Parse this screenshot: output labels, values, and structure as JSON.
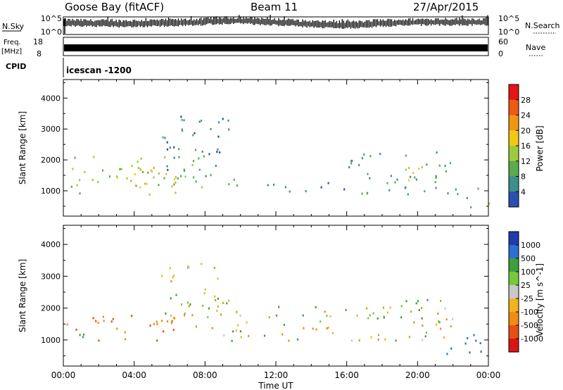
{
  "header": {
    "station": "Goose Bay (fitACF)",
    "beam": "Beam 11",
    "date": "27/Apr/2015"
  },
  "status_panels": {
    "nsky_label": "N.Sky",
    "nsky_ticks": [
      "10^5",
      "10^0"
    ],
    "nsearch_label": "N.Search",
    "nsearch_ticks": [
      "10^5",
      "10^0"
    ],
    "freq_label": "Freq.",
    "freq_unit": "[MHz]",
    "freq_ticks": [
      "18",
      "8"
    ],
    "nave_label": "Nave",
    "nave_ticks": [
      "60",
      "0"
    ],
    "cpid_label": "CPID",
    "cpid_value": "icescan -1200"
  },
  "colors": {
    "power_scale": [
      "#1414e6",
      "#2a50b0",
      "#3c8f8a",
      "#5aaa50",
      "#9ccc3c",
      "#f2c814",
      "#f09614",
      "#f05a14",
      "#e61414"
    ],
    "velocity_scale": [
      "#1e3caa",
      "#2d6ed2",
      "#3ca03c",
      "#78c83c",
      "#c8c8c8",
      "#f0b41e",
      "#f08c14",
      "#e65014",
      "#dc1414"
    ]
  },
  "chart_data": [
    {
      "type": "heatmap",
      "title": "",
      "quantity": "Power",
      "ylabel": "Slant Range [km]",
      "xlabel": "Time UT",
      "x_ticks": [
        "00:00",
        "04:00",
        "08:00",
        "12:00",
        "16:00",
        "20:00",
        "00:00"
      ],
      "xlim_hours": [
        0,
        24
      ],
      "y_ticks": [
        1000,
        2000,
        3000,
        4000
      ],
      "ylim": [
        180,
        4600
      ],
      "colorbar": {
        "label": "Power [dB]",
        "ticks": [
          4,
          8,
          12,
          16,
          20,
          24,
          28
        ],
        "range": [
          0,
          32
        ]
      },
      "echo_regions": [
        {
          "t_start": 0,
          "t_end": 8,
          "range_min": 900,
          "range_max": 2200,
          "typical_value": 14
        },
        {
          "t_start": 3,
          "t_end": 6.5,
          "range_min": 1100,
          "range_max": 1800,
          "typical_value": 22
        },
        {
          "t_start": 5.5,
          "t_end": 9.5,
          "range_min": 1600,
          "range_max": 3500,
          "typical_value": 8
        },
        {
          "t_start": 8,
          "t_end": 10,
          "range_min": 1200,
          "range_max": 1800,
          "typical_value": 10
        },
        {
          "t_start": 10,
          "t_end": 16,
          "range_min": 1000,
          "range_max": 1300,
          "typical_value": 6
        },
        {
          "t_start": 16,
          "t_end": 22,
          "range_min": 900,
          "range_max": 2300,
          "typical_value": 10
        },
        {
          "t_start": 19,
          "t_end": 21.5,
          "range_min": 1300,
          "range_max": 1800,
          "typical_value": 18
        },
        {
          "t_start": 22,
          "t_end": 24,
          "range_min": 500,
          "range_max": 1200,
          "typical_value": 12
        }
      ]
    },
    {
      "type": "heatmap",
      "title": "",
      "quantity": "Velocity",
      "ylabel": "Slant Range [km]",
      "xlabel": "Time UT",
      "x_ticks": [
        "00:00",
        "04:00",
        "08:00",
        "12:00",
        "16:00",
        "20:00",
        "00:00"
      ],
      "xlim_hours": [
        0,
        24
      ],
      "y_ticks": [
        1000,
        2000,
        3000,
        4000
      ],
      "ylim": [
        180,
        4600
      ],
      "colorbar": {
        "label": "Velocity [m s^-1]",
        "ticks": [
          1000,
          500,
          100,
          25,
          -25,
          -100,
          -500,
          -1000
        ]
      },
      "echo_regions": [
        {
          "t_start": 0,
          "t_end": 7.5,
          "range_min": 1000,
          "range_max": 1800,
          "typical_value": -300
        },
        {
          "t_start": 0,
          "t_end": 2,
          "range_min": 1000,
          "range_max": 1300,
          "typical_value": 150
        },
        {
          "t_start": 5.5,
          "t_end": 9.5,
          "range_min": 1600,
          "range_max": 3500,
          "typical_value": 0
        },
        {
          "t_start": 8,
          "t_end": 22,
          "range_min": 1000,
          "range_max": 2100,
          "typical_value": 0
        },
        {
          "t_start": 18,
          "t_end": 21.5,
          "range_min": 1500,
          "range_max": 2300,
          "typical_value": 80
        },
        {
          "t_start": 21.5,
          "t_end": 24,
          "range_min": 500,
          "range_max": 1300,
          "typical_value": 600
        }
      ]
    }
  ]
}
